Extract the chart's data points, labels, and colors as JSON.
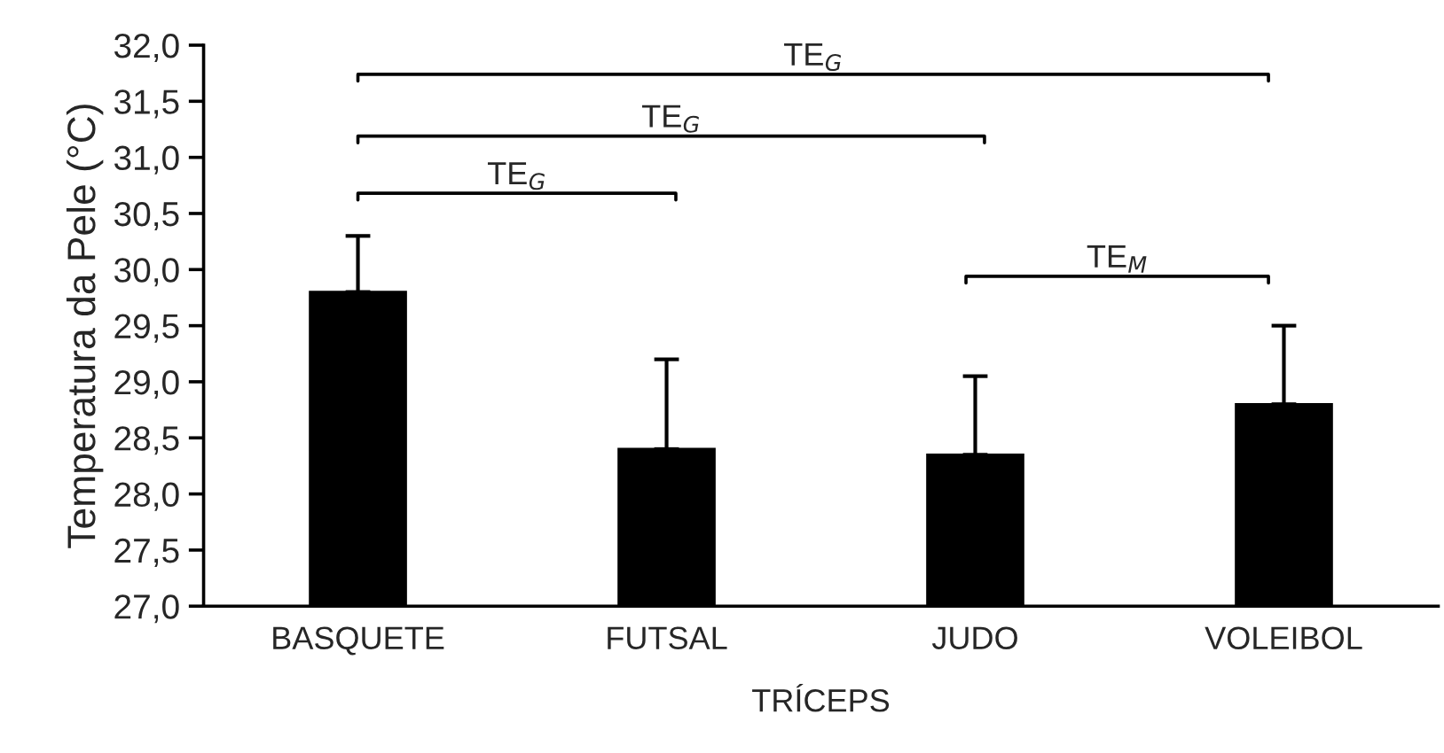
{
  "chart_data": {
    "type": "bar",
    "ylabel": "Temperatura da Pele (°C)",
    "xlabel": "TRÍCEPS",
    "categories": [
      "BASQUETE",
      "FUTSAL",
      "JUDO",
      "VOLEIBOL"
    ],
    "values": [
      29.8,
      28.4,
      28.35,
      28.8
    ],
    "errors": [
      [
        29.8,
        30.3
      ],
      [
        28.4,
        29.2
      ],
      [
        28.35,
        29.05
      ],
      [
        28.8,
        29.5
      ]
    ],
    "color": "#000000",
    "ylim": [
      27.0,
      32.0
    ],
    "yticks": [
      {
        "value": 27.0,
        "label": "27,0"
      },
      {
        "value": 27.5,
        "label": "27,5"
      },
      {
        "value": 28.0,
        "label": "28,0"
      },
      {
        "value": 28.5,
        "label": "28,5"
      },
      {
        "value": 29.0,
        "label": "29,0"
      },
      {
        "value": 29.5,
        "label": "29,5"
      },
      {
        "value": 30.0,
        "label": "30,0"
      },
      {
        "value": 30.5,
        "label": "30,5"
      },
      {
        "value": 31.0,
        "label": "31,0"
      },
      {
        "value": 31.5,
        "label": "31,5"
      },
      {
        "value": 32.0,
        "label": "32,0"
      }
    ],
    "grid": false,
    "legend": false,
    "annotations": [
      "TE$_{G}$",
      "TE$_{G}$",
      "TE$_{G}$",
      "TE$_{M}$"
    ]
  }
}
